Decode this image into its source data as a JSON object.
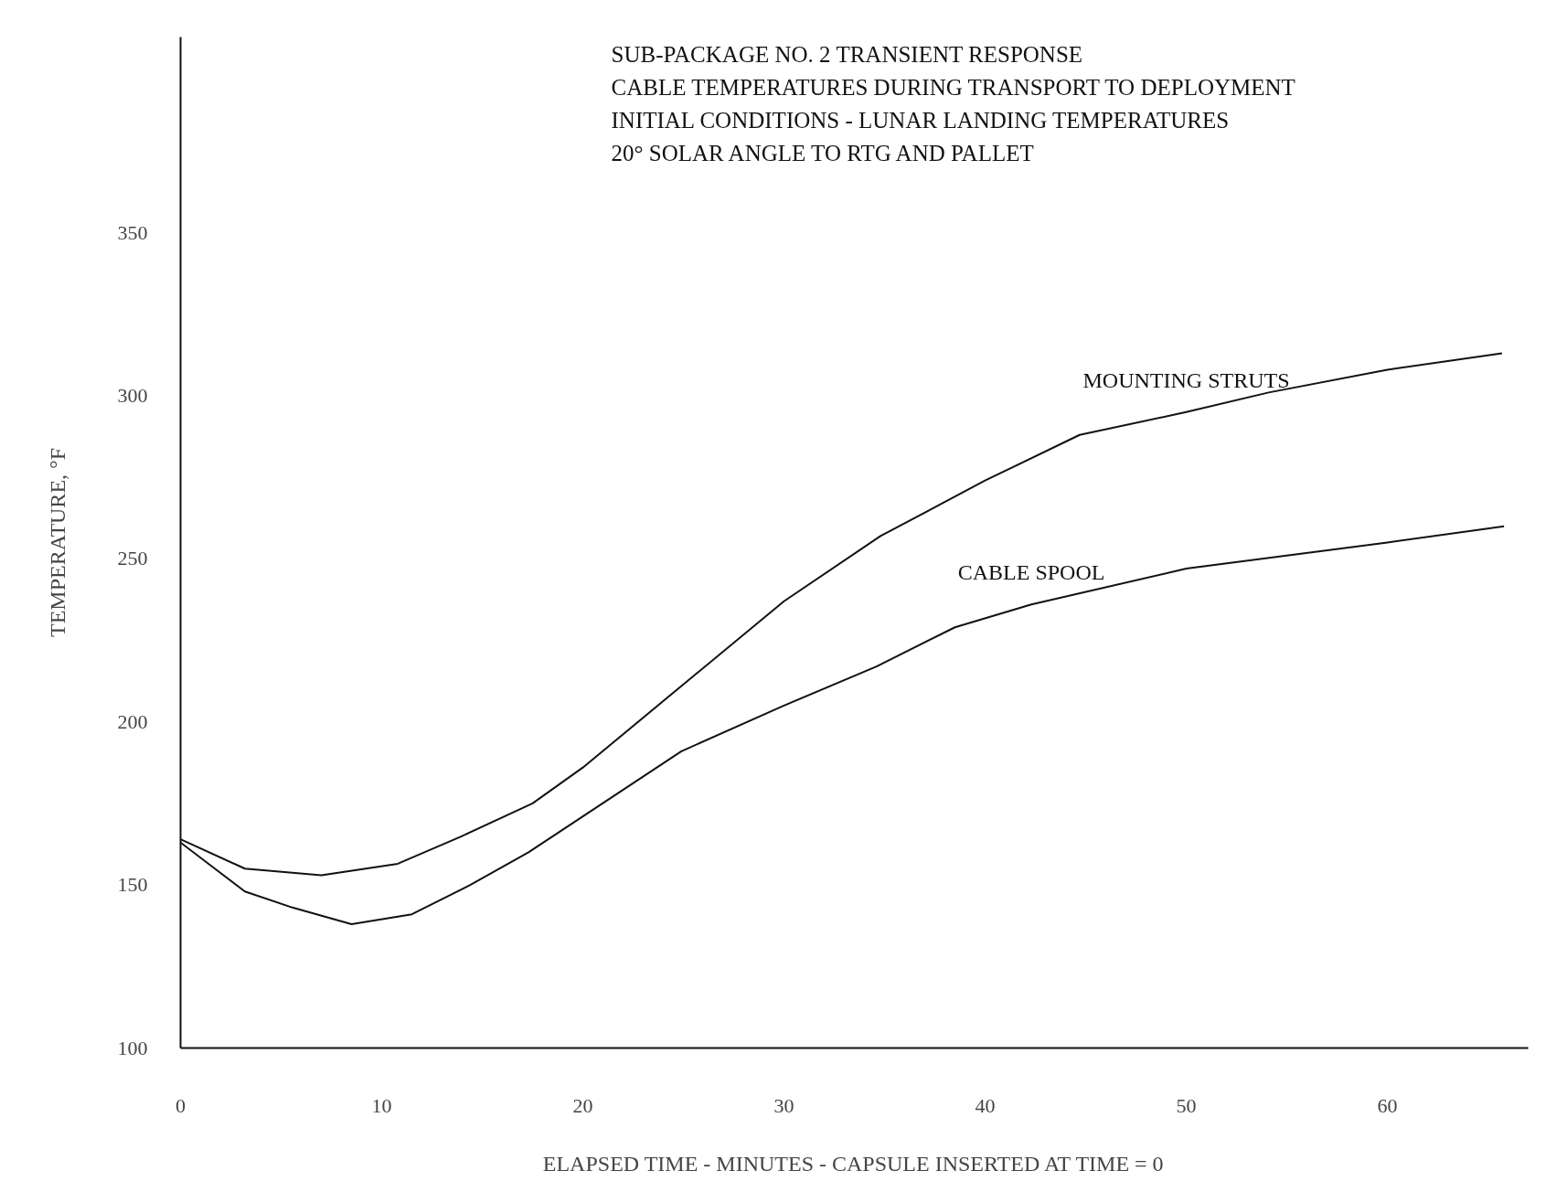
{
  "chart_data": {
    "type": "line",
    "title": "SUB-PACKAGE NO. 2 TRANSIENT RESPONSE",
    "subtitle": "CABLE TEMPERATURES DURING TRANSPORT TO DEPLOYMENT",
    "annotations": [
      "INITIAL CONDITIONS - LUNAR LANDING TEMPERATURES",
      "20° SOLAR ANGLE TO RTG AND PALLET"
    ],
    "xlabel": "ELAPSED TIME - MINUTES - CAPSULE INSERTED AT TIME = 0",
    "ylabel": "TEMPERATURE, °F",
    "xlim": [
      0,
      67
    ],
    "ylim": [
      100,
      410
    ],
    "xticks": [
      0,
      10,
      20,
      30,
      40,
      50,
      60
    ],
    "yticks": [
      100,
      150,
      200,
      250,
      300,
      350
    ],
    "grid": false,
    "marker": "none",
    "line_style": "solid",
    "series": [
      {
        "name": "MOUNTING STRUTS",
        "color": "#111111",
        "x": [
          0,
          3.2,
          7,
          10.8,
          14,
          17.5,
          20,
          24.9,
          30,
          34.8,
          40,
          44.7,
          50,
          54.1,
          60,
          65.7
        ],
        "values": [
          164,
          155,
          153,
          156.5,
          165,
          175,
          186,
          211,
          237,
          257,
          274,
          288,
          295,
          301,
          308,
          313
        ]
      },
      {
        "name": "CABLE SPOOL",
        "color": "#111111",
        "x": [
          0,
          3.2,
          5.6,
          8.5,
          11.5,
          14.4,
          17.3,
          20,
          24.9,
          30,
          34.6,
          38.5,
          42.3,
          50,
          60,
          65.8
        ],
        "values": [
          163,
          148,
          143,
          138,
          141,
          150,
          160,
          171,
          191,
          205,
          217,
          229,
          236,
          247,
          255,
          260
        ]
      }
    ]
  }
}
